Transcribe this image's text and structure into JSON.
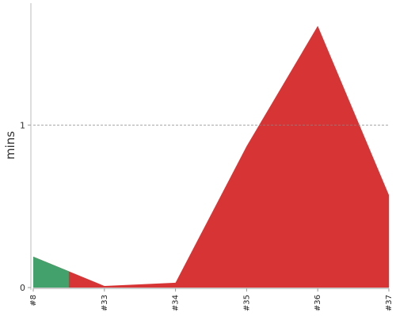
{
  "chart_data": {
    "type": "area",
    "ylabel": "mins",
    "categories": [
      "#8",
      "#33",
      "#34",
      "#35",
      "#36",
      "#37"
    ],
    "x_positions": [
      0,
      1,
      2,
      3,
      4,
      5
    ],
    "y_ticks": [
      0,
      1
    ],
    "ylim": [
      0,
      1.75
    ],
    "reference_line": 1,
    "series": [
      {
        "color": "#d73535",
        "points": [
          [
            0,
            0.19
          ],
          [
            1,
            0.01
          ],
          [
            2,
            0.03
          ],
          [
            3,
            0.87
          ],
          [
            4,
            1.61
          ],
          [
            5,
            0.57
          ]
        ]
      },
      {
        "color": "#43a26b",
        "points": [
          [
            0,
            0.19
          ],
          [
            0.5,
            0.1
          ],
          [
            0.5,
            0
          ]
        ]
      }
    ]
  }
}
